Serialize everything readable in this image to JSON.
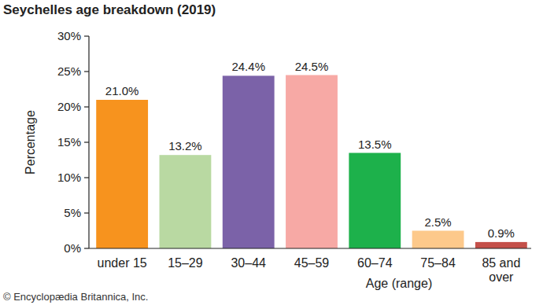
{
  "chart_data": {
    "type": "bar",
    "title": "Seychelles age breakdown (2019)",
    "xlabel": "Age (range)",
    "ylabel": "Percentage",
    "categories": [
      "under 15",
      "15–29",
      "30–44",
      "45–59",
      "60–74",
      "75–84",
      "85 and over"
    ],
    "values": [
      21.0,
      13.2,
      24.4,
      24.5,
      13.5,
      2.5,
      0.9
    ],
    "value_labels": [
      "21.0%",
      "13.2%",
      "24.4%",
      "24.5%",
      "13.5%",
      "2.5%",
      "0.9%"
    ],
    "colors": [
      "#f7931e",
      "#b9d9a2",
      "#7b62a8",
      "#f7a9a5",
      "#1db14b",
      "#fdc98b",
      "#c4504a"
    ],
    "ylim": [
      0,
      30
    ],
    "yticks": [
      {
        "value": 0,
        "label": "0%"
      },
      {
        "value": 5,
        "label": "5%"
      },
      {
        "value": 10,
        "label": "10%"
      },
      {
        "value": 15,
        "label": "15%"
      },
      {
        "value": 20,
        "label": "20%"
      },
      {
        "value": 25,
        "label": "25%"
      },
      {
        "value": 30,
        "label": "30%"
      }
    ],
    "grid": false,
    "data_labels": true,
    "annotations": [
      "© Encyclopædia Britannica, Inc."
    ]
  }
}
